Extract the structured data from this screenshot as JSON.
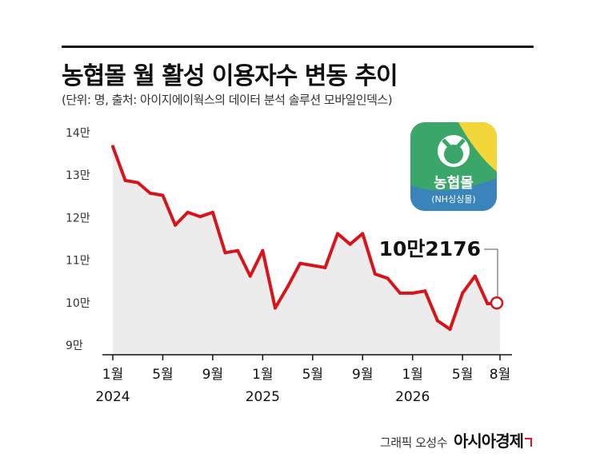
{
  "title": "농협몰 월 활성 이용자수 변동 추이",
  "subtitle": "(단위: 명, 출처: 아이지에이웍스의 데이터 분석 솔루션 모바일인덱스)",
  "credit": {
    "by": "그래픽 오성수",
    "brand": "아시아경제"
  },
  "app_icon": {
    "name": "농협몰",
    "sub": "(NH싱싱몰)",
    "icon": "nh-logo-icon"
  },
  "colors": {
    "line": "#d7141a",
    "area": "#ececec",
    "axis": "#111111",
    "icon_green": "#3aa66a",
    "icon_yellow": "#f2d63a",
    "icon_blue": "#3b7fc4"
  },
  "chart_data": {
    "type": "area",
    "y_tick_labels": [
      "9만",
      "10만",
      "11만",
      "12만",
      "13만",
      "14만"
    ],
    "y_ticks": [
      90000,
      100000,
      110000,
      120000,
      130000,
      140000
    ],
    "ylim": [
      90000,
      140000
    ],
    "x_ticks": [
      {
        "index": 0,
        "month": "1월",
        "year": "2024"
      },
      {
        "index": 4,
        "month": "5월",
        "year": ""
      },
      {
        "index": 8,
        "month": "9월",
        "year": ""
      },
      {
        "index": 12,
        "month": "1월",
        "year": "2025"
      },
      {
        "index": 16,
        "month": "5월",
        "year": ""
      },
      {
        "index": 20,
        "month": "9월",
        "year": ""
      },
      {
        "index": 24,
        "month": "1월",
        "year": "2026"
      },
      {
        "index": 28,
        "month": "5월",
        "year": ""
      },
      {
        "index": 31,
        "month": "8월",
        "year": ""
      }
    ],
    "values": [
      139000,
      131000,
      130500,
      128000,
      127500,
      120500,
      123500,
      122500,
      123500,
      114000,
      114500,
      108500,
      114500,
      101000,
      106000,
      111500,
      111000,
      110500,
      118500,
      116000,
      118500,
      109000,
      108000,
      104500,
      104500,
      105000,
      98000,
      96000,
      104500,
      108500,
      102000,
      102176
    ],
    "annotation": {
      "index": 31,
      "label": "10만2176"
    }
  }
}
